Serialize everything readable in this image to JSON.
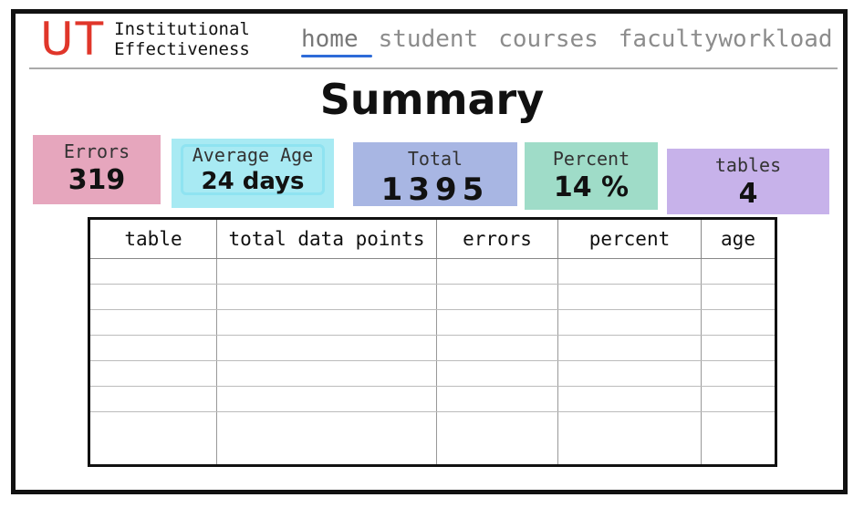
{
  "app": {
    "logo_mark": "UT",
    "logo_line1": "Institutional",
    "logo_line2": "Effectiveness"
  },
  "nav": {
    "items": [
      "home",
      "student",
      "courses",
      "facultyworkload"
    ],
    "active": "home"
  },
  "page": {
    "title": "Summary"
  },
  "cards": [
    {
      "label": "Errors",
      "value": "319",
      "color": "#e6a6bd"
    },
    {
      "label": "Average Age",
      "value": "24 days",
      "color": "#a8eaf3"
    },
    {
      "label": "Total",
      "value": "1395",
      "color": "#a8b6e3"
    },
    {
      "label": "Percent",
      "value": "14 %",
      "color": "#9fdcc8"
    },
    {
      "label": "tables",
      "value": "4",
      "color": "#c7b2ea"
    }
  ],
  "table": {
    "columns": [
      "table",
      "total data points",
      "errors",
      "percent",
      "age"
    ],
    "row_count": 7
  },
  "colors": {
    "accent": "#2e6bd8",
    "brand": "#e0362a"
  }
}
